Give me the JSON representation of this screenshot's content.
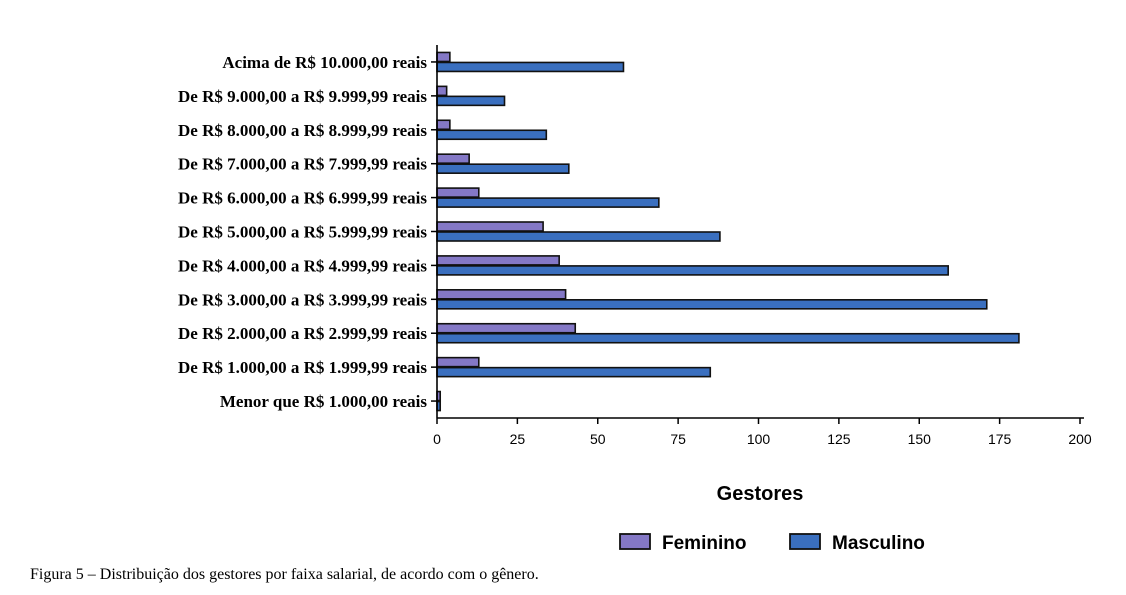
{
  "chart_data": {
    "type": "bar",
    "orientation": "horizontal",
    "categories": [
      "Acima de R$ 10.000,00 reais",
      "De R$ 9.000,00 a R$ 9.999,99 reais",
      "De R$ 8.000,00 a R$ 8.999,99 reais",
      "De R$ 7.000,00 a R$ 7.999,99 reais",
      "De R$ 6.000,00 a R$ 6.999,99 reais",
      "De R$ 5.000,00 a R$ 5.999,99 reais",
      "De R$ 4.000,00 a R$ 4.999,99 reais",
      "De R$ 3.000,00 a R$ 3.999,99 reais",
      "De R$ 2.000,00 a R$ 2.999,99 reais",
      "De R$ 1.000,00 a R$ 1.999,99 reais",
      "Menor que R$ 1.000,00 reais"
    ],
    "series": [
      {
        "name": "Feminino",
        "color": "#8478c6",
        "values": [
          4,
          3,
          4,
          10,
          13,
          33,
          38,
          40,
          43,
          13,
          1
        ]
      },
      {
        "name": "Masculino",
        "color": "#3a6fbf",
        "values": [
          58,
          21,
          34,
          41,
          69,
          88,
          159,
          171,
          181,
          85,
          1
        ]
      }
    ],
    "xlabel": "Gestores",
    "ylabel": "",
    "xlim": [
      0,
      200
    ],
    "xticks": [
      0,
      25,
      50,
      75,
      100,
      125,
      150,
      175,
      200
    ],
    "grid": false,
    "legend_position": "bottom"
  },
  "caption": "Figura 5 – Distribuição dos gestores por faixa salarial, de acordo com o gênero."
}
